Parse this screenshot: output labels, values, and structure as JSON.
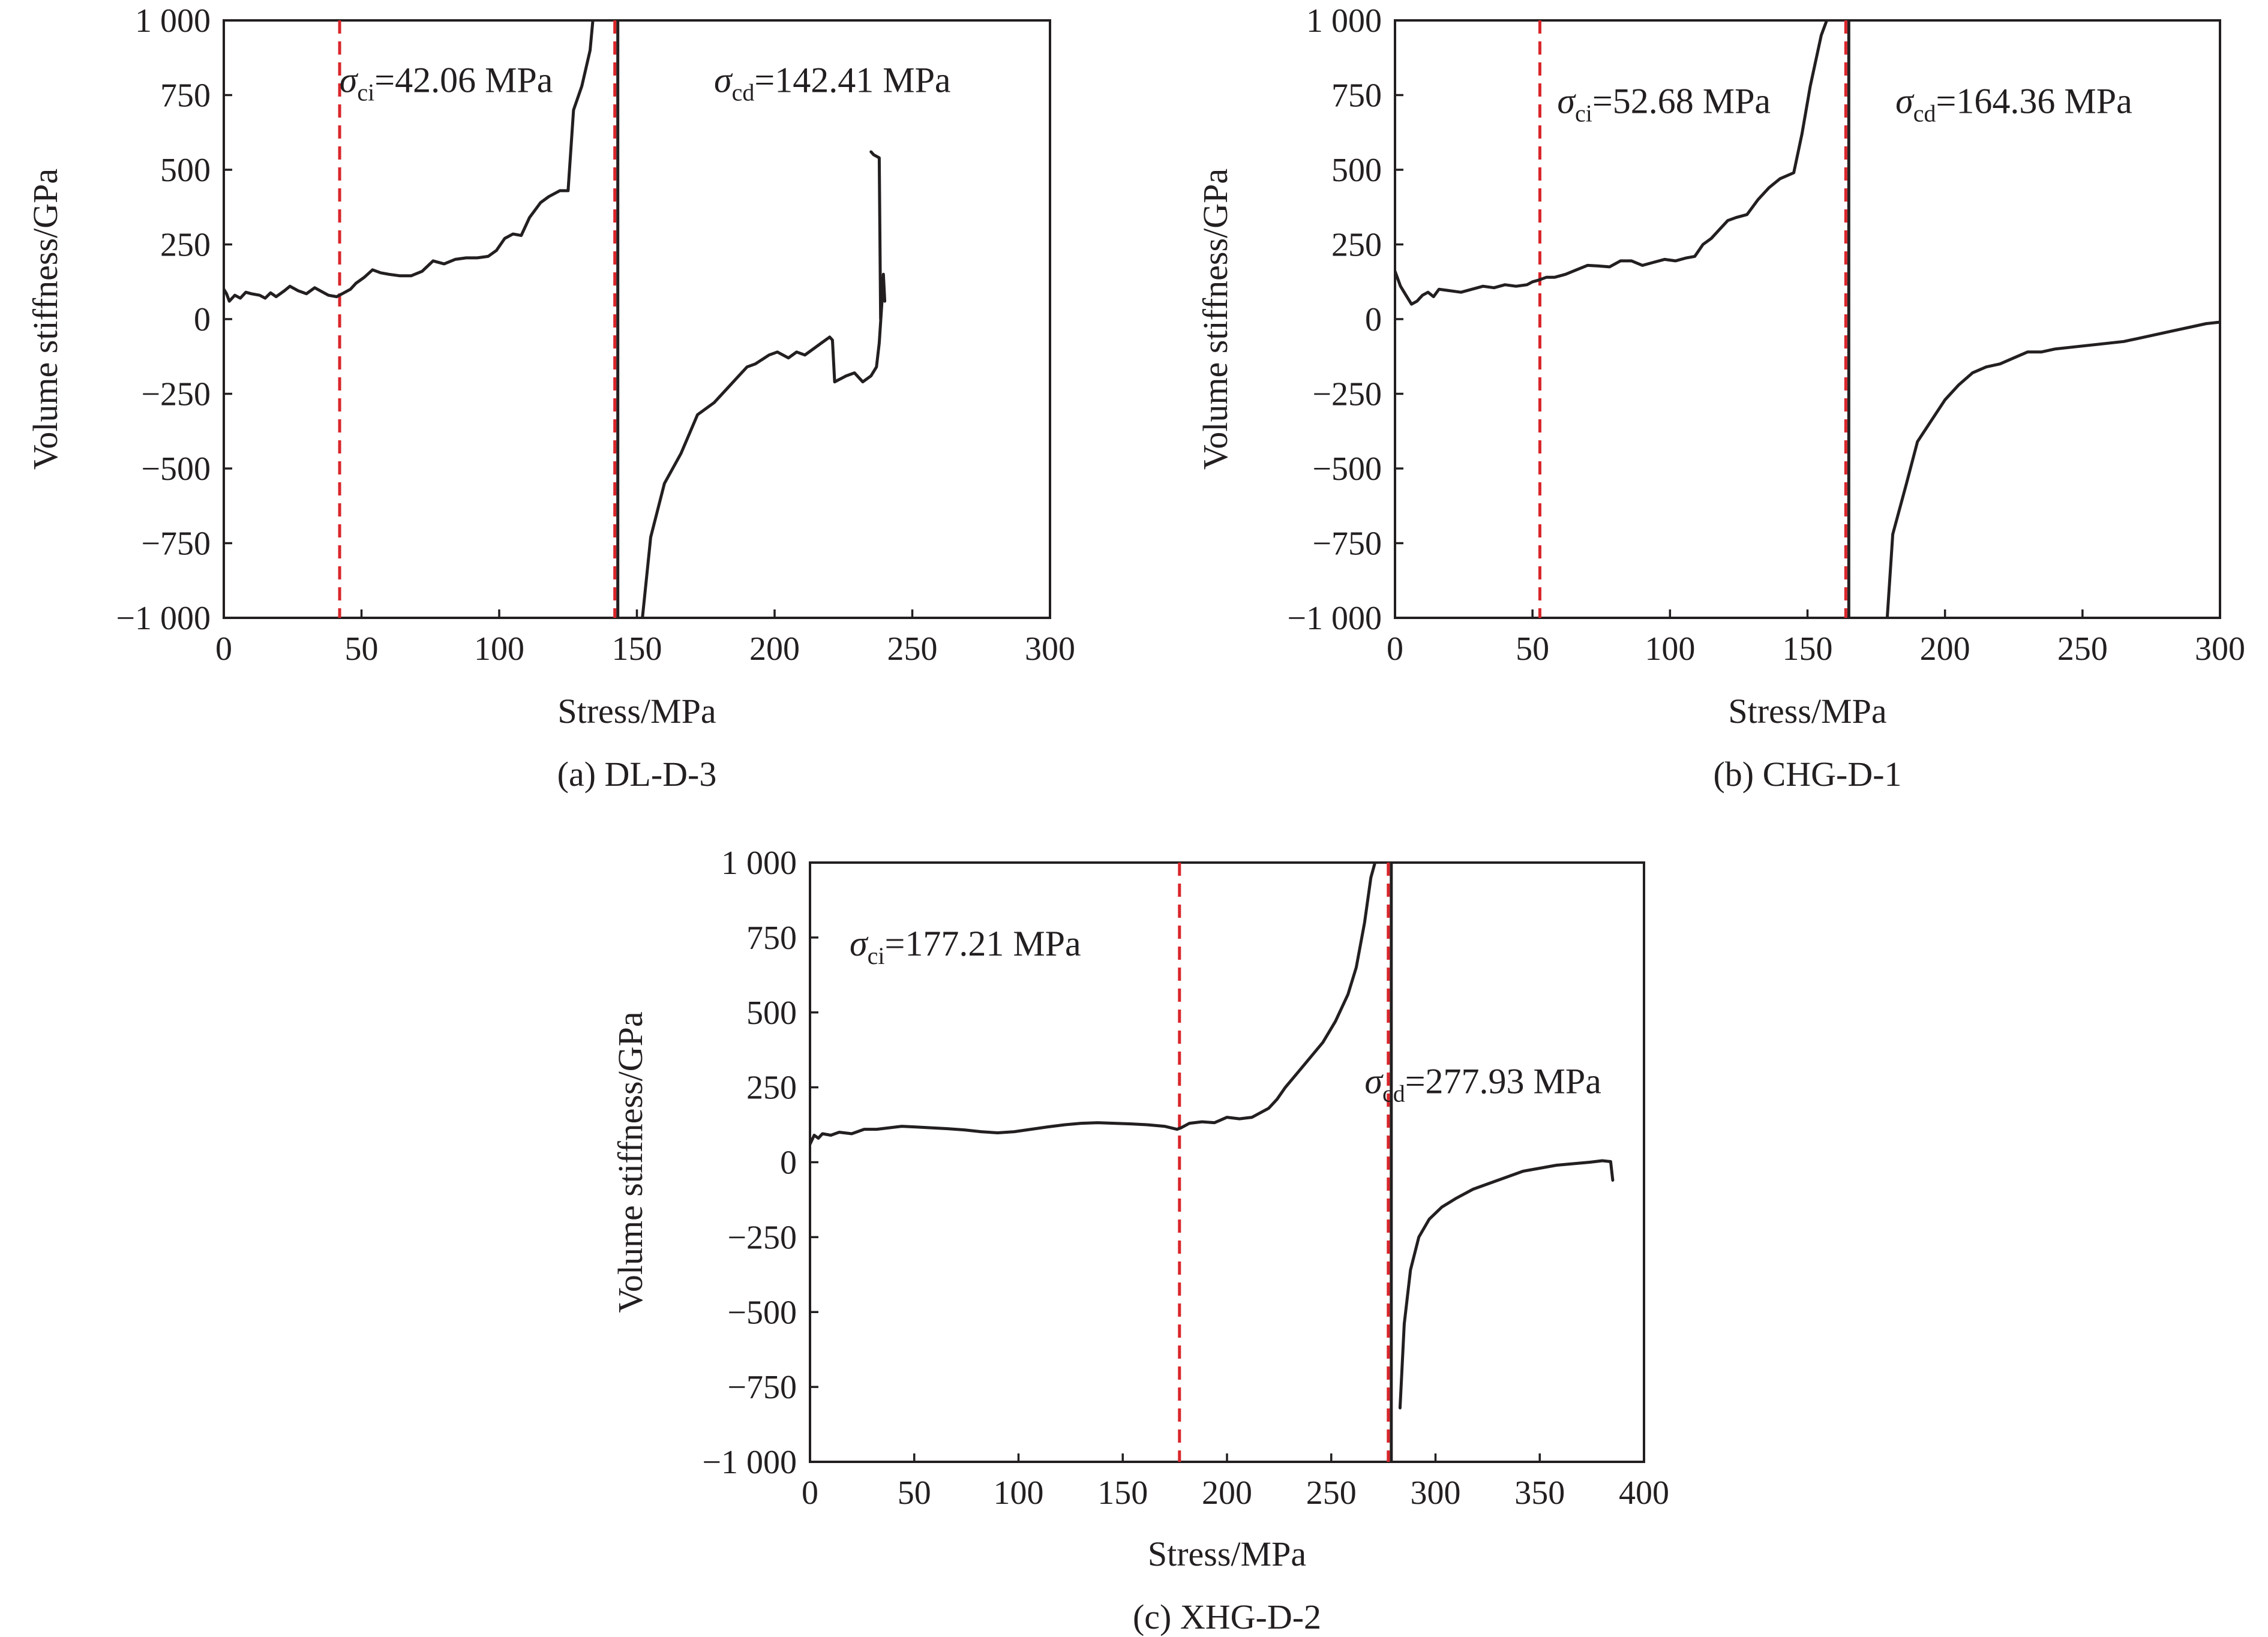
{
  "chart_data": [
    {
      "type": "line",
      "caption": "(a) DL-D-3",
      "xlabel": "Stress/MPa",
      "ylabel": "Volume stiffness/GPa",
      "xlim": [
        0,
        300
      ],
      "ylim": [
        -1000,
        1000
      ],
      "xticks": [
        "0",
        "50",
        "100",
        "150",
        "200",
        "250",
        "300"
      ],
      "yticks": [
        "1 000",
        "750",
        "500",
        "250",
        "0",
        "−250",
        "−500",
        "−750",
        "−1 000"
      ],
      "grid": false,
      "sigma_ci": {
        "symbol": "σ",
        "sub": "ci",
        "text": "=42.06 MPa",
        "value": 42.06,
        "label_x": 42,
        "label_y": 760
      },
      "sigma_cd": {
        "symbol": "σ",
        "sub": "cd",
        "text": "=142.41 MPa",
        "value": 142.41,
        "label_x": 178,
        "label_y": 760
      },
      "segments": [
        [
          [
            0,
            100
          ],
          [
            1,
            85
          ],
          [
            2,
            60
          ],
          [
            4,
            80
          ],
          [
            6,
            70
          ],
          [
            8,
            90
          ],
          [
            10,
            85
          ],
          [
            13,
            80
          ],
          [
            15,
            70
          ],
          [
            17,
            88
          ],
          [
            19,
            75
          ],
          [
            22,
            95
          ],
          [
            24,
            110
          ],
          [
            27,
            95
          ],
          [
            30,
            85
          ],
          [
            33,
            105
          ],
          [
            36,
            90
          ],
          [
            38,
            80
          ],
          [
            41,
            75
          ],
          [
            44,
            90
          ],
          [
            46,
            100
          ],
          [
            48,
            120
          ],
          [
            51,
            140
          ],
          [
            54,
            165
          ],
          [
            57,
            155
          ],
          [
            60,
            150
          ],
          [
            64,
            145
          ],
          [
            68,
            145
          ],
          [
            72,
            160
          ],
          [
            76,
            195
          ],
          [
            80,
            185
          ],
          [
            84,
            200
          ],
          [
            88,
            205
          ],
          [
            92,
            205
          ],
          [
            96,
            210
          ],
          [
            99,
            230
          ],
          [
            102,
            270
          ],
          [
            105,
            285
          ],
          [
            108,
            280
          ],
          [
            111,
            340
          ],
          [
            115,
            390
          ],
          [
            118,
            410
          ],
          [
            122,
            430
          ],
          [
            125,
            430
          ],
          [
            127,
            700
          ],
          [
            130,
            780
          ],
          [
            133,
            900
          ],
          [
            134,
            1000
          ]
        ],
        [
          [
            152,
            -1000
          ],
          [
            155,
            -730
          ],
          [
            160,
            -550
          ],
          [
            166,
            -450
          ],
          [
            172,
            -320
          ],
          [
            178,
            -280
          ],
          [
            183,
            -230
          ],
          [
            186,
            -200
          ],
          [
            190,
            -160
          ],
          [
            193,
            -150
          ],
          [
            198,
            -120
          ],
          [
            201,
            -110
          ],
          [
            205,
            -130
          ],
          [
            208,
            -110
          ],
          [
            211,
            -120
          ],
          [
            214,
            -100
          ],
          [
            217,
            -80
          ],
          [
            220,
            -60
          ],
          [
            221,
            -70
          ],
          [
            221.8,
            -210
          ],
          [
            226,
            -190
          ],
          [
            229,
            -180
          ],
          [
            232,
            -210
          ],
          [
            235,
            -190
          ],
          [
            237,
            -160
          ],
          [
            238,
            -80
          ],
          [
            239,
            60
          ],
          [
            239.5,
            150
          ],
          [
            240,
            60
          ]
        ],
        [
          [
            235,
            560
          ],
          [
            236,
            550
          ],
          [
            238,
            540
          ],
          [
            238.5,
            0
          ]
        ]
      ]
    },
    {
      "type": "line",
      "caption": "(b) CHG-D-1",
      "xlabel": "Stress/MPa",
      "ylabel": "Volume stiffness/GPa",
      "xlim": [
        0,
        300
      ],
      "ylim": [
        -1000,
        1000
      ],
      "xticks": [
        "0",
        "50",
        "100",
        "150",
        "200",
        "250",
        "300"
      ],
      "yticks": [
        "1 000",
        "750",
        "500",
        "250",
        "0",
        "−250",
        "−500",
        "−750",
        "−1 000"
      ],
      "grid": false,
      "sigma_ci": {
        "symbol": "σ",
        "sub": "ci",
        "text": "=52.68 MPa",
        "value": 52.68,
        "label_x": 59,
        "label_y": 690
      },
      "sigma_cd": {
        "symbol": "σ",
        "sub": "cd",
        "text": "=164.36 MPa",
        "value": 164.36,
        "label_x": 182,
        "label_y": 690
      },
      "segments": [
        [
          [
            0,
            160
          ],
          [
            2,
            110
          ],
          [
            4,
            80
          ],
          [
            6,
            50
          ],
          [
            8,
            60
          ],
          [
            10,
            80
          ],
          [
            12,
            90
          ],
          [
            14,
            75
          ],
          [
            16,
            100
          ],
          [
            20,
            95
          ],
          [
            24,
            90
          ],
          [
            28,
            100
          ],
          [
            32,
            110
          ],
          [
            36,
            105
          ],
          [
            40,
            115
          ],
          [
            44,
            110
          ],
          [
            48,
            115
          ],
          [
            50,
            125
          ],
          [
            52,
            130
          ],
          [
            55,
            140
          ],
          [
            58,
            140
          ],
          [
            62,
            150
          ],
          [
            66,
            165
          ],
          [
            70,
            180
          ],
          [
            74,
            178
          ],
          [
            78,
            175
          ],
          [
            82,
            195
          ],
          [
            86,
            195
          ],
          [
            90,
            180
          ],
          [
            94,
            190
          ],
          [
            98,
            200
          ],
          [
            102,
            195
          ],
          [
            106,
            205
          ],
          [
            109,
            210
          ],
          [
            112,
            250
          ],
          [
            115,
            270
          ],
          [
            118,
            300
          ],
          [
            121,
            330
          ],
          [
            124,
            340
          ],
          [
            128,
            350
          ],
          [
            132,
            400
          ],
          [
            136,
            440
          ],
          [
            140,
            470
          ],
          [
            145,
            490
          ],
          [
            148,
            620
          ],
          [
            151,
            780
          ],
          [
            155,
            950
          ],
          [
            157,
            1000
          ]
        ],
        [
          [
            179,
            -1000
          ],
          [
            181,
            -720
          ],
          [
            186,
            -550
          ],
          [
            190,
            -410
          ],
          [
            195,
            -340
          ],
          [
            200,
            -270
          ],
          [
            205,
            -220
          ],
          [
            210,
            -180
          ],
          [
            215,
            -160
          ],
          [
            220,
            -150
          ],
          [
            225,
            -130
          ],
          [
            230,
            -110
          ],
          [
            235,
            -110
          ],
          [
            240,
            -100
          ],
          [
            245,
            -95
          ],
          [
            250,
            -90
          ],
          [
            255,
            -85
          ],
          [
            260,
            -80
          ],
          [
            265,
            -75
          ],
          [
            270,
            -65
          ],
          [
            275,
            -55
          ],
          [
            280,
            -45
          ],
          [
            285,
            -35
          ],
          [
            290,
            -25
          ],
          [
            295,
            -15
          ],
          [
            300,
            -10
          ]
        ]
      ]
    },
    {
      "type": "line",
      "caption": "(c) XHG-D-2",
      "xlabel": "Stress/MPa",
      "ylabel": "Volume stiffness/GPa",
      "xlim": [
        0,
        400
      ],
      "ylim": [
        -1000,
        1000
      ],
      "xticks": [
        "0",
        "50",
        "100",
        "150",
        "200",
        "250",
        "300",
        "350",
        "400"
      ],
      "yticks": [
        "1 000",
        "750",
        "500",
        "250",
        "0",
        "−250",
        "−500",
        "−750",
        "−1 000"
      ],
      "grid": false,
      "sigma_ci": {
        "symbol": "σ",
        "sub": "ci",
        "text": "=177.21 MPa",
        "value": 177.21,
        "label_x": 19,
        "label_y": 690
      },
      "sigma_cd": {
        "symbol": "σ",
        "sub": "cd",
        "text": "=277.93 MPa",
        "value": 277.93,
        "label_x": 266,
        "label_y": 230
      },
      "segments": [
        [
          [
            0,
            60
          ],
          [
            2,
            90
          ],
          [
            4,
            80
          ],
          [
            6,
            95
          ],
          [
            10,
            90
          ],
          [
            14,
            100
          ],
          [
            20,
            95
          ],
          [
            26,
            110
          ],
          [
            32,
            110
          ],
          [
            38,
            115
          ],
          [
            44,
            120
          ],
          [
            50,
            118
          ],
          [
            58,
            115
          ],
          [
            66,
            112
          ],
          [
            74,
            108
          ],
          [
            82,
            102
          ],
          [
            90,
            98
          ],
          [
            98,
            102
          ],
          [
            106,
            110
          ],
          [
            114,
            118
          ],
          [
            122,
            125
          ],
          [
            130,
            130
          ],
          [
            138,
            132
          ],
          [
            146,
            130
          ],
          [
            154,
            128
          ],
          [
            162,
            125
          ],
          [
            170,
            120
          ],
          [
            176,
            110
          ],
          [
            178,
            115
          ],
          [
            182,
            130
          ],
          [
            188,
            135
          ],
          [
            194,
            132
          ],
          [
            200,
            150
          ],
          [
            206,
            145
          ],
          [
            212,
            150
          ],
          [
            216,
            165
          ],
          [
            220,
            180
          ],
          [
            224,
            210
          ],
          [
            228,
            250
          ],
          [
            234,
            300
          ],
          [
            240,
            350
          ],
          [
            246,
            400
          ],
          [
            252,
            470
          ],
          [
            258,
            560
          ],
          [
            262,
            650
          ],
          [
            266,
            800
          ],
          [
            269,
            950
          ],
          [
            271,
            1000
          ]
        ],
        [
          [
            283,
            -820
          ],
          [
            285,
            -540
          ],
          [
            288,
            -360
          ],
          [
            292,
            -250
          ],
          [
            297,
            -190
          ],
          [
            303,
            -150
          ],
          [
            310,
            -120
          ],
          [
            318,
            -90
          ],
          [
            326,
            -70
          ],
          [
            334,
            -50
          ],
          [
            342,
            -30
          ],
          [
            350,
            -20
          ],
          [
            358,
            -10
          ],
          [
            366,
            -5
          ],
          [
            374,
            0
          ],
          [
            380,
            5
          ],
          [
            384,
            2
          ],
          [
            385,
            -60
          ]
        ]
      ]
    }
  ]
}
